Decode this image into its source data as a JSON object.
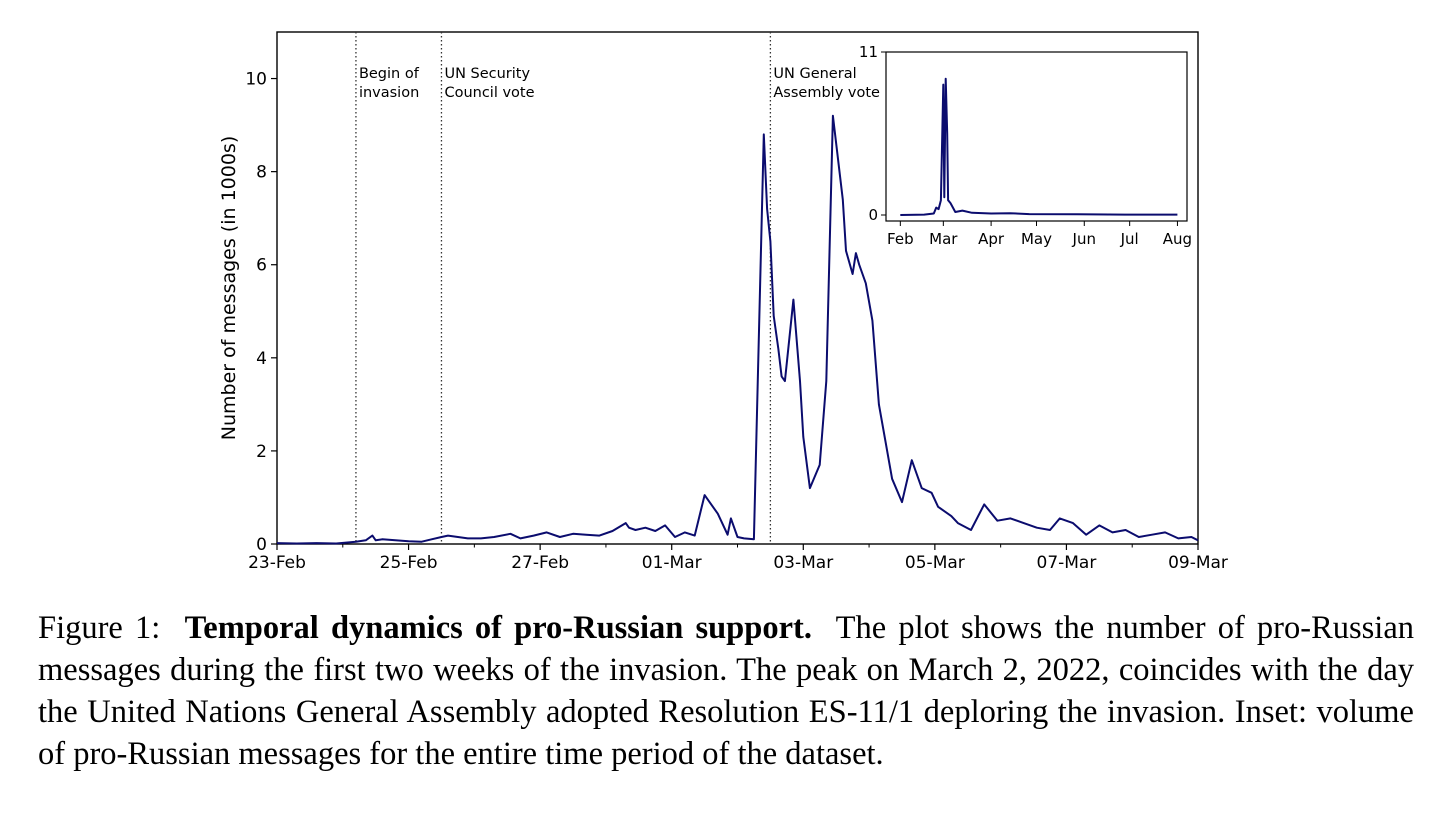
{
  "chart_data": [
    {
      "type": "line",
      "title": "",
      "xlabel": "",
      "ylabel": "Number of messages (in 1000s)",
      "xlim": [
        0,
        14
      ],
      "ylim": [
        0,
        11
      ],
      "x_unit": "days since 23-Feb (2022)",
      "xticks": [
        {
          "pos": 0,
          "label": "23-Feb"
        },
        {
          "pos": 2,
          "label": "25-Feb"
        },
        {
          "pos": 4,
          "label": "27-Feb"
        },
        {
          "pos": 6,
          "label": "01-Mar"
        },
        {
          "pos": 8,
          "label": "03-Mar"
        },
        {
          "pos": 10,
          "label": "05-Mar"
        },
        {
          "pos": 12,
          "label": "07-Mar"
        },
        {
          "pos": 14,
          "label": "09-Mar"
        }
      ],
      "minor_xticks": [
        1,
        3,
        5,
        7,
        9,
        11,
        13
      ],
      "yticks": [
        {
          "pos": 0,
          "label": "0"
        },
        {
          "pos": 2,
          "label": "2"
        },
        {
          "pos": 4,
          "label": "4"
        },
        {
          "pos": 6,
          "label": "6"
        },
        {
          "pos": 8,
          "label": "8"
        },
        {
          "pos": 10,
          "label": "10"
        }
      ],
      "annotations": [
        {
          "x": 1.2,
          "lines": [
            "Begin of",
            "invasion"
          ]
        },
        {
          "x": 2.5,
          "lines": [
            "UN Security",
            "Council vote"
          ]
        },
        {
          "x": 7.5,
          "lines": [
            "UN General",
            "Assembly vote"
          ]
        }
      ],
      "series": [
        {
          "name": "pro-Russian messages",
          "color": "#0b0c6e",
          "x": [
            0,
            0.3,
            0.6,
            0.9,
            1.2,
            1.35,
            1.45,
            1.5,
            1.6,
            1.8,
            2.0,
            2.2,
            2.35,
            2.5,
            2.6,
            2.75,
            2.9,
            3.1,
            3.3,
            3.55,
            3.7,
            3.9,
            4.1,
            4.3,
            4.5,
            4.7,
            4.9,
            5.1,
            5.3,
            5.35,
            5.45,
            5.6,
            5.75,
            5.9,
            6.05,
            6.2,
            6.35,
            6.5,
            6.7,
            6.85,
            6.9,
            7.0,
            7.1,
            7.25,
            7.4,
            7.45,
            7.5,
            7.55,
            7.62,
            7.67,
            7.72,
            7.85,
            7.95,
            8.0,
            8.1,
            8.25,
            8.35,
            8.45,
            8.6,
            8.65,
            8.75,
            8.8,
            8.85,
            8.95,
            9.05,
            9.15,
            9.25,
            9.35,
            9.5,
            9.65,
            9.8,
            9.95,
            10.05,
            10.15,
            10.25,
            10.35,
            10.55,
            10.75,
            10.95,
            11.15,
            11.35,
            11.55,
            11.75,
            11.9,
            12.1,
            12.3,
            12.5,
            12.7,
            12.9,
            13.1,
            13.3,
            13.5,
            13.7,
            13.9,
            14.0
          ],
          "values": [
            0.02,
            0.01,
            0.02,
            0.01,
            0.05,
            0.08,
            0.18,
            0.08,
            0.1,
            0.08,
            0.06,
            0.05,
            0.1,
            0.15,
            0.18,
            0.15,
            0.12,
            0.12,
            0.15,
            0.22,
            0.12,
            0.18,
            0.25,
            0.15,
            0.22,
            0.2,
            0.18,
            0.28,
            0.45,
            0.35,
            0.3,
            0.35,
            0.28,
            0.4,
            0.15,
            0.25,
            0.18,
            1.05,
            0.65,
            0.2,
            0.55,
            0.15,
            0.12,
            0.1,
            8.8,
            7.2,
            6.5,
            4.9,
            4.2,
            3.6,
            3.5,
            5.25,
            3.5,
            2.3,
            1.2,
            1.7,
            3.5,
            9.2,
            7.4,
            6.3,
            5.8,
            6.25,
            6.0,
            5.6,
            4.8,
            3.0,
            2.2,
            1.4,
            0.9,
            1.8,
            1.2,
            1.1,
            0.8,
            0.7,
            0.6,
            0.45,
            0.3,
            0.85,
            0.5,
            0.55,
            0.45,
            0.35,
            0.3,
            0.55,
            0.45,
            0.2,
            0.4,
            0.25,
            0.3,
            0.15,
            0.2,
            0.25,
            0.12,
            0.15,
            0.08
          ]
        }
      ]
    },
    {
      "type": "line",
      "role": "inset",
      "title": "",
      "xlabel": "",
      "ylabel": "",
      "xlim": [
        0,
        6.3
      ],
      "ylim": [
        0,
        11
      ],
      "x_unit": "months since Feb (2022)",
      "xticks": [
        {
          "pos": 0.3,
          "label": "Feb"
        },
        {
          "pos": 1.2,
          "label": "Mar"
        },
        {
          "pos": 2.2,
          "label": "Apr"
        },
        {
          "pos": 3.15,
          "label": "May"
        },
        {
          "pos": 4.15,
          "label": "Jun"
        },
        {
          "pos": 5.1,
          "label": "Jul"
        },
        {
          "pos": 6.1,
          "label": "Aug"
        }
      ],
      "yticks": [
        {
          "pos": 0,
          "label": "0"
        },
        {
          "pos": 11,
          "label": "11"
        }
      ],
      "series": [
        {
          "name": "pro-Russian messages (entire period)",
          "color": "#0b0c6e",
          "x": [
            0.3,
            0.8,
            1.0,
            1.05,
            1.1,
            1.15,
            1.2,
            1.22,
            1.25,
            1.28,
            1.3,
            1.35,
            1.45,
            1.6,
            1.8,
            2.2,
            2.6,
            3.0,
            4.0,
            5.0,
            6.1
          ],
          "values": [
            0,
            0.03,
            0.1,
            0.5,
            0.4,
            1.0,
            8.8,
            1.2,
            9.2,
            5.5,
            1.0,
            0.8,
            0.2,
            0.3,
            0.15,
            0.1,
            0.12,
            0.06,
            0.05,
            0.03,
            0.03
          ]
        }
      ]
    }
  ],
  "caption": {
    "label": "Figure 1:",
    "title": "Temporal dynamics of pro-Russian support.",
    "body": "The plot shows the number of pro-Russian messages during the first two weeks of the invasion. The peak on March 2, 2022, coincides with the day the United Nations General Assembly adopted Resolution ES-11/1 deploring the invasion. Inset: volume of pro-Russian messages for the entire time period of the dataset."
  }
}
